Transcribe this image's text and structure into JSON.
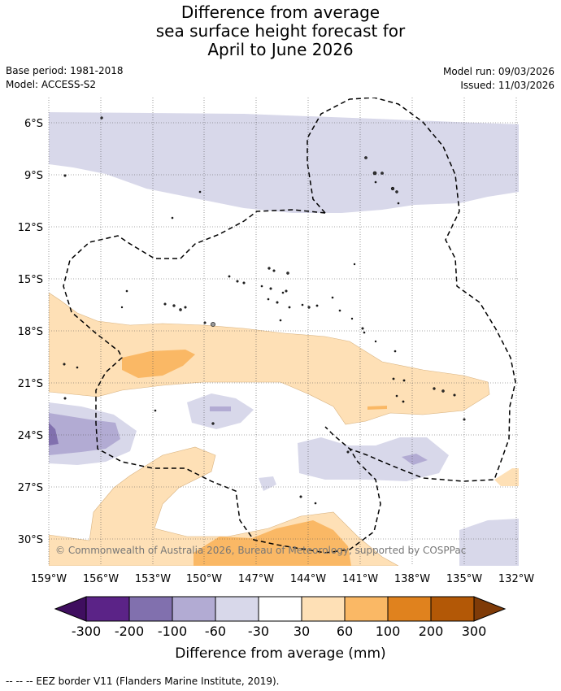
{
  "header": {
    "title_lines": [
      "Difference from average",
      "sea surface height forecast for",
      "April to June 2026"
    ],
    "base_period": "Base period: 1981-2018",
    "model": "Model: ACCESS-S2",
    "model_run": "Model run: 09/03/2026",
    "issued": "Issued: 11/03/2026"
  },
  "map": {
    "lat_labels": [
      "6°S",
      "9°S",
      "12°S",
      "15°S",
      "18°S",
      "21°S",
      "24°S",
      "27°S",
      "30°S"
    ],
    "lon_labels": [
      "159°W",
      "156°W",
      "153°W",
      "150°W",
      "147°W",
      "144°W",
      "141°W",
      "138°W",
      "135°W",
      "132°W"
    ],
    "copyright": "© Commonwealth of Australia 2026, Bureau of Meteorology, supported by COSPPac"
  },
  "legend": {
    "tick_labels": [
      "-300",
      "-200",
      "-100",
      "-60",
      "-30",
      "30",
      "60",
      "100",
      "200",
      "300"
    ],
    "colors": [
      "#3f0e5f",
      "#5b2387",
      "#8170ae",
      "#b2abd3",
      "#d8d8ea",
      "#ffffff",
      "#fee0b6",
      "#fab865",
      "#e0821e",
      "#b35806",
      "#7f3b08"
    ],
    "title": "Difference from average (mm)"
  },
  "footer": {
    "note": "-- -- -- EEZ border V11 (Flanders Marine Institute, 2019)."
  }
}
